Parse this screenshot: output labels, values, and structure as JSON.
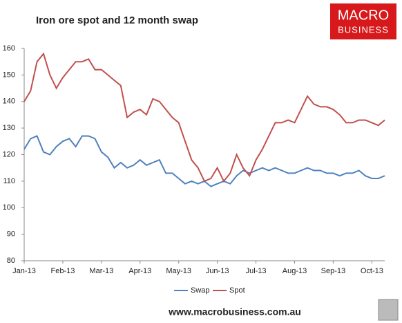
{
  "chart_data": {
    "type": "line",
    "title": "Iron ore spot and 12 month swap",
    "logo": [
      "MACRO",
      "BUSINESS"
    ],
    "footer": "www.macrobusiness.com.au",
    "categories": [
      "Jan-13",
      null,
      null,
      null,
      null,
      null,
      "Feb-13",
      null,
      null,
      null,
      null,
      null,
      "Mar-13",
      null,
      null,
      null,
      null,
      null,
      "Apr-13",
      null,
      null,
      null,
      null,
      null,
      "May-13",
      null,
      null,
      null,
      null,
      null,
      "Jun-13",
      null,
      null,
      null,
      null,
      null,
      "Jul-13",
      null,
      null,
      null,
      null,
      null,
      "Aug-13",
      null,
      null,
      null,
      null,
      null,
      "Sep-13",
      null,
      null,
      null,
      null,
      null,
      "Oct-13",
      null,
      null
    ],
    "series": [
      {
        "name": "Swap",
        "color": "#4f81bd",
        "values": [
          122,
          126,
          127,
          121,
          120,
          123,
          125,
          126,
          123,
          127,
          127,
          126,
          121,
          119,
          115,
          117,
          115,
          116,
          118,
          116,
          117,
          118,
          113,
          113,
          111,
          109,
          110,
          109,
          110,
          108,
          109,
          110,
          109,
          112,
          114,
          113,
          114,
          115,
          114,
          115,
          114,
          113,
          113,
          114,
          115,
          114,
          114,
          113,
          113,
          112,
          113,
          113,
          114,
          112,
          111,
          111,
          112
        ]
      },
      {
        "name": "Spot",
        "color": "#c0504d",
        "values": [
          140,
          144,
          155,
          158,
          150,
          145,
          149,
          152,
          155,
          155,
          156,
          152,
          152,
          150,
          148,
          146,
          134,
          136,
          137,
          135,
          141,
          140,
          137,
          134,
          132,
          125,
          118,
          115,
          110,
          111,
          115,
          110,
          113,
          120,
          115,
          112,
          118,
          122,
          127,
          132,
          132,
          133,
          132,
          137,
          142,
          139,
          138,
          138,
          137,
          135,
          132,
          132,
          133,
          133,
          132,
          131,
          133
        ]
      }
    ],
    "ylim": [
      80,
      160
    ],
    "yticks": [
      80,
      90,
      100,
      110,
      120,
      130,
      140,
      150,
      160
    ],
    "grid": false,
    "legend": "bottom"
  }
}
